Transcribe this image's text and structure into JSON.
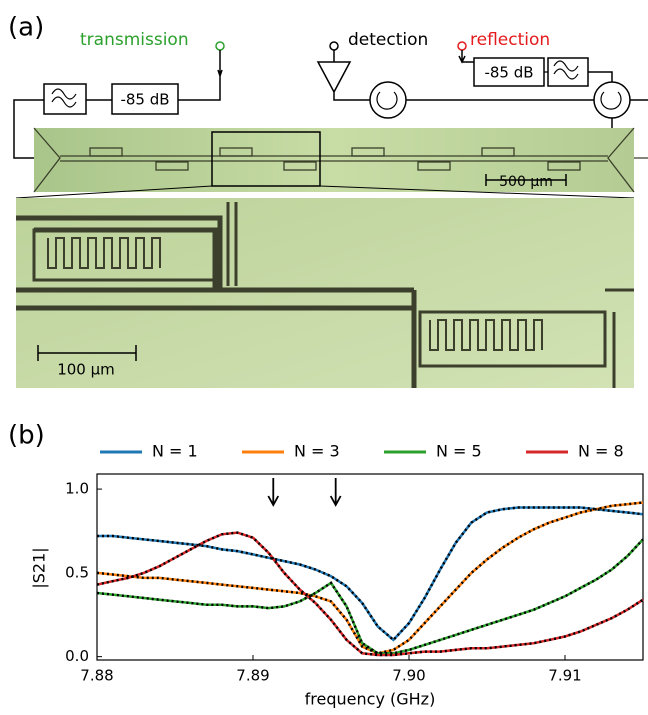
{
  "panel_a": {
    "label": "(a)",
    "transmission": "transmission",
    "detection": "detection",
    "reflection": "reflection",
    "attenuator_left": "-85 dB",
    "attenuator_right": "-85 dB",
    "scale_bar_large": "500 µm",
    "scale_bar_zoom": "100 µm"
  },
  "chart_data": {
    "type": "line",
    "label": "(b)",
    "x_label": "frequency (GHz)",
    "y_label": "|S21|",
    "x": [
      7.88,
      7.881,
      7.882,
      7.883,
      7.884,
      7.885,
      7.886,
      7.887,
      7.888,
      7.889,
      7.89,
      7.891,
      7.892,
      7.893,
      7.894,
      7.895,
      7.896,
      7.897,
      7.898,
      7.899,
      7.9,
      7.901,
      7.902,
      7.903,
      7.904,
      7.905,
      7.906,
      7.907,
      7.908,
      7.909,
      7.91,
      7.911,
      7.912,
      7.913,
      7.914,
      7.915
    ],
    "series": [
      {
        "name": "N = 1",
        "color": "#1f77b4",
        "values": [
          0.72,
          0.72,
          0.71,
          0.7,
          0.69,
          0.68,
          0.67,
          0.66,
          0.64,
          0.63,
          0.61,
          0.59,
          0.57,
          0.55,
          0.52,
          0.48,
          0.42,
          0.32,
          0.18,
          0.1,
          0.2,
          0.35,
          0.52,
          0.68,
          0.8,
          0.86,
          0.88,
          0.89,
          0.89,
          0.89,
          0.89,
          0.89,
          0.88,
          0.87,
          0.86,
          0.85
        ]
      },
      {
        "name": "N = 3",
        "color": "#ff7f0e",
        "values": [
          0.5,
          0.49,
          0.48,
          0.47,
          0.47,
          0.46,
          0.45,
          0.44,
          0.43,
          0.42,
          0.41,
          0.4,
          0.39,
          0.38,
          0.36,
          0.33,
          0.22,
          0.06,
          0.02,
          0.04,
          0.1,
          0.2,
          0.3,
          0.4,
          0.5,
          0.58,
          0.65,
          0.71,
          0.76,
          0.8,
          0.83,
          0.86,
          0.88,
          0.9,
          0.91,
          0.92
        ]
      },
      {
        "name": "N = 5",
        "color": "#2ca02c",
        "values": [
          0.38,
          0.37,
          0.36,
          0.35,
          0.34,
          0.33,
          0.32,
          0.31,
          0.31,
          0.3,
          0.3,
          0.29,
          0.3,
          0.33,
          0.38,
          0.44,
          0.3,
          0.08,
          0.02,
          0.02,
          0.04,
          0.07,
          0.1,
          0.13,
          0.16,
          0.19,
          0.22,
          0.25,
          0.28,
          0.32,
          0.36,
          0.41,
          0.46,
          0.52,
          0.6,
          0.7
        ]
      },
      {
        "name": "N = 8",
        "color": "#d62728",
        "values": [
          0.43,
          0.45,
          0.47,
          0.5,
          0.54,
          0.59,
          0.64,
          0.69,
          0.73,
          0.74,
          0.71,
          0.62,
          0.5,
          0.4,
          0.32,
          0.22,
          0.1,
          0.02,
          0.01,
          0.01,
          0.02,
          0.03,
          0.03,
          0.04,
          0.05,
          0.05,
          0.06,
          0.07,
          0.08,
          0.1,
          0.12,
          0.15,
          0.19,
          0.23,
          0.28,
          0.34
        ]
      }
    ],
    "fit_color": "#000000",
    "arrows_x": [
      7.8913,
      7.8953
    ],
    "xlim": [
      7.88,
      7.915
    ],
    "xticks": [
      {
        "value": 7.88,
        "label": "7.88"
      },
      {
        "value": 7.89,
        "label": "7.89"
      },
      {
        "value": 7.9,
        "label": "7.90"
      },
      {
        "value": 7.91,
        "label": "7.91"
      }
    ],
    "ylim": [
      -0.02,
      1.09
    ],
    "yticks": [
      {
        "value": 0,
        "label": "0.0"
      },
      {
        "value": 0.5,
        "label": "0.5"
      },
      {
        "value": 1,
        "label": "1.0"
      }
    ],
    "grid": false
  }
}
